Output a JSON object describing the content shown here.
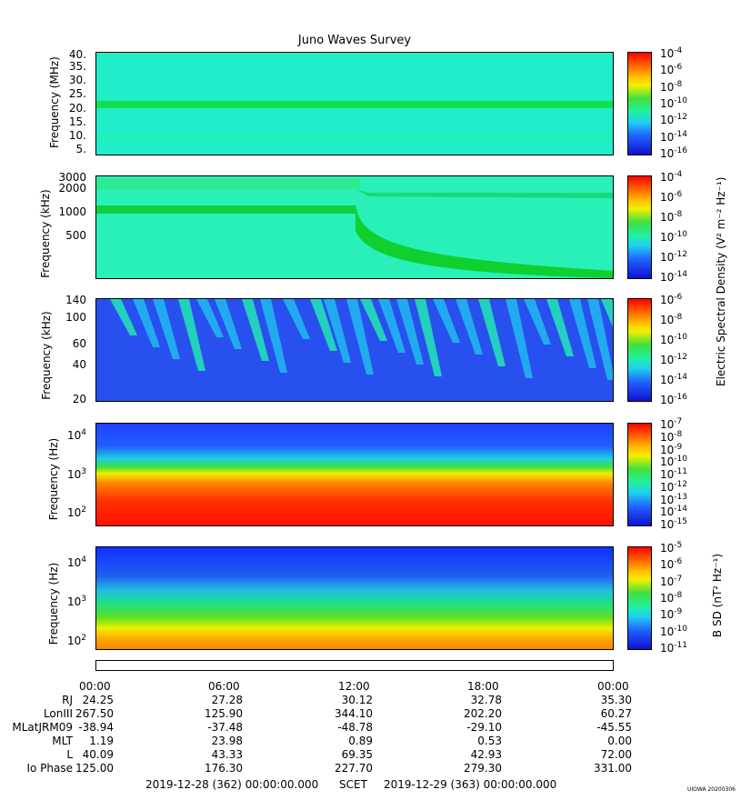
{
  "title": "Juno Waves Survey",
  "panels": [
    {
      "ylabel": "Frequency (MHz)",
      "yticks": [
        "40.",
        "35.",
        "30.",
        "25.",
        "20.",
        "15.",
        "10.",
        "5."
      ],
      "cticks": [
        "10",
        "10",
        "10",
        "10",
        "10",
        "10",
        "10"
      ],
      "cexp": [
        "-4",
        "-6",
        "-8",
        "-10",
        "-12",
        "-14",
        "-16"
      ]
    },
    {
      "ylabel": "Frequency (kHz)",
      "yticks": [
        "3000",
        "2000",
        "1000",
        "500"
      ],
      "cticks": [
        "10",
        "10",
        "10",
        "10",
        "10",
        "10"
      ],
      "cexp": [
        "-4",
        "-6",
        "-8",
        "-10",
        "-12",
        "-14"
      ]
    },
    {
      "ylabel": "Frequency (kHz)",
      "yticks": [
        "140",
        "100",
        "60",
        "40",
        "20"
      ],
      "cticks": [
        "10",
        "10",
        "10",
        "10",
        "10",
        "10"
      ],
      "cexp": [
        "-6",
        "-8",
        "-10",
        "-12",
        "-14",
        "-16"
      ]
    },
    {
      "ylabel": "Frequency (Hz)",
      "yticks": [
        "10",
        "10",
        "10"
      ],
      "yexp": [
        "4",
        "3",
        "2"
      ],
      "cticks": [
        "10",
        "10",
        "10",
        "10",
        "10",
        "10",
        "10",
        "10",
        "10"
      ],
      "cexp": [
        "-7",
        "-8",
        "-9",
        "-10",
        "-11",
        "-12",
        "-13",
        "-14",
        "-15"
      ]
    },
    {
      "ylabel": "Frequency (Hz)",
      "yticks": [
        "10",
        "10",
        "10"
      ],
      "yexp": [
        "4",
        "3",
        "2"
      ],
      "cticks": [
        "10",
        "10",
        "10",
        "10",
        "10",
        "10",
        "10"
      ],
      "cexp": [
        "-5",
        "-6",
        "-7",
        "-8",
        "-9",
        "-10",
        "-11"
      ]
    }
  ],
  "cbar_label_e": "Electric Spectral Density (V² m⁻² Hz⁻¹)",
  "cbar_label_b": "B SD (nT² Hz⁻¹)",
  "xticks": [
    "00:00",
    "06:00",
    "12:00",
    "18:00",
    "00:00"
  ],
  "ephemeris": {
    "labels": [
      "RJ",
      "LonIII",
      "MLatJRM09",
      "MLT",
      "L",
      "Io Phase"
    ],
    "rows": [
      [
        "24.25",
        "27.28",
        "30.12",
        "32.78",
        "35.30"
      ],
      [
        "267.50",
        "125.90",
        "344.10",
        "202.20",
        "60.27"
      ],
      [
        "-38.94",
        "-37.48",
        "-48.78",
        "-29.10",
        "-45.55"
      ],
      [
        "1.19",
        "23.98",
        "0.89",
        "0.53",
        "0.00"
      ],
      [
        "40.09",
        "43.33",
        "69.35",
        "42.93",
        "72.00"
      ],
      [
        "125.00",
        "176.30",
        "227.70",
        "279.30",
        "331.00"
      ]
    ]
  },
  "footer_left": "2019-12-28 (362) 00:00:00.000",
  "footer_mid": "SCET",
  "footer_right": "2019-12-29 (363) 00:00:00.000",
  "stamp": "UIOWA 20200306",
  "colors": {
    "cyan": "#20f0c0",
    "green": "#10e040",
    "blue": "#2040ff",
    "red": "#ff2000",
    "yellow": "#ffe000"
  },
  "chart_data": [
    {
      "type": "heatmap",
      "title": "Juno Waves Survey",
      "ylabel": "Frequency (MHz)",
      "ylim": [
        3,
        41
      ],
      "x": [
        "00:00",
        "06:00",
        "12:00",
        "18:00",
        "00:00"
      ]
    },
    {
      "type": "heatmap",
      "ylabel": "Frequency (kHz)",
      "ylim": [
        150,
        3000
      ],
      "x": [
        "00:00",
        "06:00",
        "12:00",
        "18:00",
        "00:00"
      ]
    },
    {
      "type": "heatmap",
      "ylabel": "Frequency (kHz)",
      "ylim": [
        20,
        140
      ],
      "x": [
        "00:00",
        "06:00",
        "12:00",
        "18:00",
        "00:00"
      ]
    },
    {
      "type": "heatmap",
      "ylabel": "Frequency (Hz)",
      "ylim": [
        50,
        20000
      ],
      "x": [
        "00:00",
        "06:00",
        "12:00",
        "18:00",
        "00:00"
      ]
    },
    {
      "type": "heatmap",
      "ylabel": "Frequency (Hz)",
      "ylim": [
        50,
        20000
      ],
      "x": [
        "00:00",
        "06:00",
        "12:00",
        "18:00",
        "00:00"
      ]
    }
  ]
}
